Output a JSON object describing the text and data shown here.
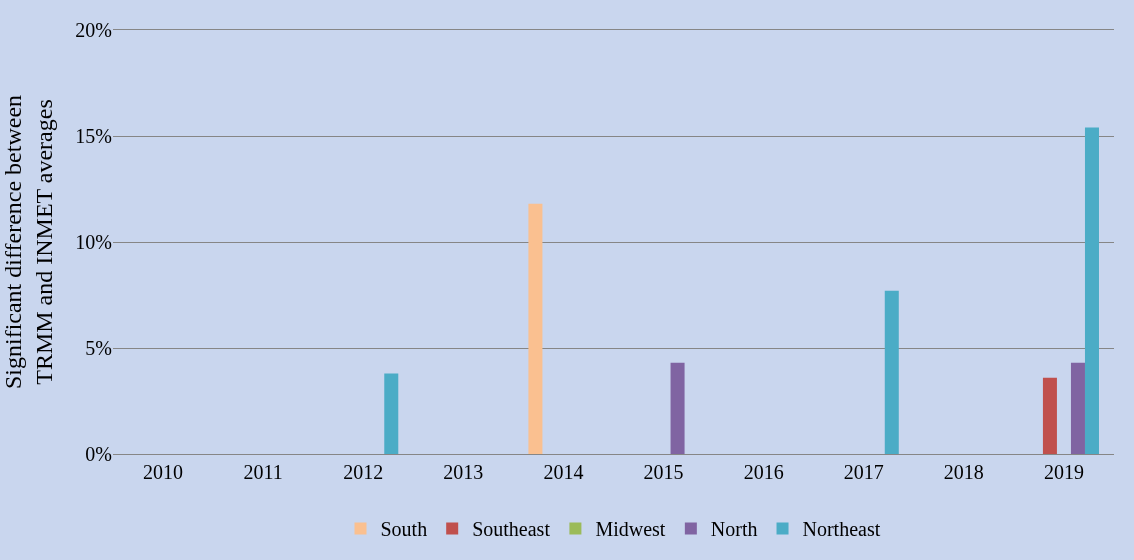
{
  "chart_data": {
    "type": "bar",
    "ylabel": "Significant difference between TRMM and INMET averages",
    "categories": [
      "2010",
      "2011",
      "2012",
      "2013",
      "2014",
      "2015",
      "2016",
      "2017",
      "2018",
      "2019"
    ],
    "series": [
      {
        "name": "South",
        "color": "#fac090",
        "values": [
          0,
          0,
          0,
          0,
          11.8,
          0,
          0,
          0,
          0,
          0
        ]
      },
      {
        "name": "Southeast",
        "color": "#c0504d",
        "values": [
          0,
          0,
          0,
          0,
          0,
          0,
          0,
          0,
          0,
          3.6
        ]
      },
      {
        "name": "Midwest",
        "color": "#9bbb59",
        "values": [
          0,
          0,
          0,
          0,
          0,
          0,
          0,
          0,
          0,
          0
        ]
      },
      {
        "name": "North",
        "color": "#8064a2",
        "values": [
          0,
          0,
          0,
          0,
          0,
          4.3,
          0,
          0,
          0,
          4.3
        ]
      },
      {
        "name": "Northeast",
        "color": "#4bacc6",
        "values": [
          0,
          0,
          3.8,
          0,
          0,
          0,
          0,
          7.7,
          0,
          15.4
        ]
      }
    ],
    "ylim": [
      0,
      20
    ],
    "yticks": [
      {
        "value": 0,
        "label": "0%"
      },
      {
        "value": 5,
        "label": "5%"
      },
      {
        "value": 10,
        "label": "10%"
      },
      {
        "value": 15,
        "label": "15%"
      },
      {
        "value": 20,
        "label": "20%"
      }
    ],
    "grid": "y",
    "legend": "bottom"
  }
}
